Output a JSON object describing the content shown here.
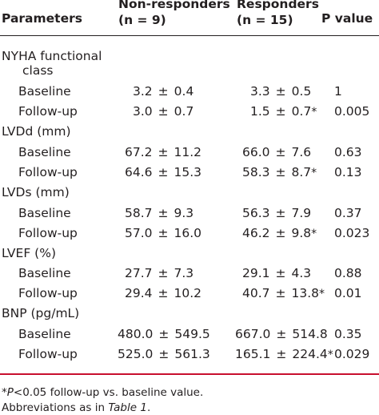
{
  "header": {
    "parameters": "Parameters",
    "non_responders_line1": "Non-responders",
    "non_responders_line2": "(n = 9)",
    "responders_line1": "Responders",
    "responders_line2": "(n = 15)",
    "p_value": "P value"
  },
  "plus_minus": "±",
  "groups": [
    {
      "label_line1": "NYHA functional",
      "label_line2": "class",
      "rows": [
        {
          "label": "Baseline",
          "nr_mean": "3.2",
          "nr_sd": "0.4",
          "r_mean": "3.3",
          "r_sd": "0.5",
          "r_star": "",
          "p": "1"
        },
        {
          "label": "Follow-up",
          "nr_mean": "3.0",
          "nr_sd": "0.7",
          "r_mean": "1.5",
          "r_sd": "0.7",
          "r_star": "*",
          "p": "0.005"
        }
      ]
    },
    {
      "label_line1": "LVDd (mm)",
      "rows": [
        {
          "label": "Baseline",
          "nr_mean": "67.2",
          "nr_sd": "11.2",
          "r_mean": "66.0",
          "r_sd": "7.6",
          "r_star": "",
          "p": "0.63"
        },
        {
          "label": "Follow-up",
          "nr_mean": "64.6",
          "nr_sd": "15.3",
          "r_mean": "58.3",
          "r_sd": "8.7",
          "r_star": "*",
          "p": "0.13"
        }
      ]
    },
    {
      "label_line1": "LVDs (mm)",
      "rows": [
        {
          "label": "Baseline",
          "nr_mean": "58.7",
          "nr_sd": "9.3",
          "r_mean": "56.3",
          "r_sd": "7.9",
          "r_star": "",
          "p": "0.37"
        },
        {
          "label": "Follow-up",
          "nr_mean": "57.0",
          "nr_sd": "16.0",
          "r_mean": "46.2",
          "r_sd": "9.8",
          "r_star": "*",
          "p": "0.023"
        }
      ]
    },
    {
      "label_line1": "LVEF (%)",
      "rows": [
        {
          "label": "Baseline",
          "nr_mean": "27.7",
          "nr_sd": "7.3",
          "r_mean": "29.1",
          "r_sd": "4.3",
          "r_star": "",
          "p": "0.88"
        },
        {
          "label": "Follow-up",
          "nr_mean": "29.4",
          "nr_sd": "10.2",
          "r_mean": "40.7",
          "r_sd": "13.8",
          "r_star": "*",
          "p": "0.01"
        }
      ]
    },
    {
      "label_line1": "BNP (pg/mL)",
      "rows": [
        {
          "label": "Baseline",
          "nr_mean": "480.0",
          "nr_sd": "549.5",
          "r_mean": "667.0",
          "r_sd": "514.8",
          "r_star": "",
          "p": "0.35"
        },
        {
          "label": "Follow-up",
          "nr_mean": "525.0",
          "nr_sd": "561.3",
          "r_mean": "165.1",
          "r_sd": "224.4",
          "r_star": "*",
          "p": "0.029"
        }
      ]
    }
  ],
  "footnotes": {
    "line1_star": "*",
    "line1_p": "P",
    "line1_rest": "<0.05 follow-up vs. baseline value.",
    "line2_prefix": "Abbreviations as in ",
    "line2_ref": "Table 1",
    "line2_suffix": "."
  }
}
